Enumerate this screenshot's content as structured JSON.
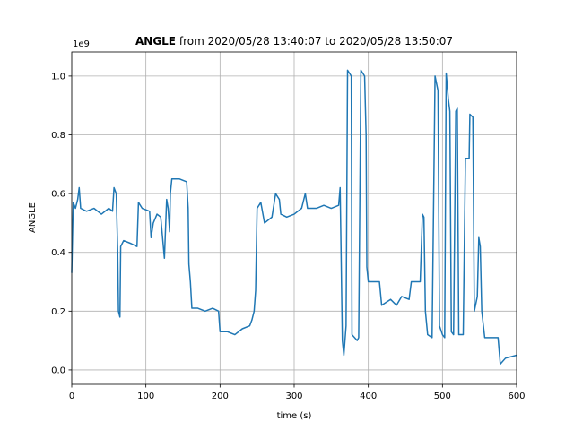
{
  "chart_data": {
    "type": "line",
    "title_bold": "ANGLE",
    "title_rest": "from 2020/05/28 13:40:07 to 2020/05/28 13:50:07",
    "offset_text": "1e9",
    "xlabel": "time (s)",
    "ylabel": "ANGLE",
    "color": "#1f77b4",
    "grid": true,
    "xlim": [
      0,
      600
    ],
    "xticks": [
      0,
      100,
      200,
      300,
      400,
      500,
      600
    ],
    "ylim": [
      -0.049,
      1.082
    ],
    "yticks": [
      {
        "value": 0,
        "label": "0.0"
      },
      0.2,
      0.4,
      0.6,
      0.8,
      {
        "value": 1,
        "label": "1.0"
      }
    ],
    "x": [
      0,
      1,
      2,
      5,
      8,
      10,
      12,
      20,
      30,
      40,
      50,
      55,
      57,
      60,
      62,
      63,
      65,
      66,
      70,
      80,
      88,
      90,
      95,
      105,
      107,
      110,
      115,
      120,
      125,
      128,
      130,
      132,
      133,
      135,
      145,
      155,
      157,
      158,
      160,
      162,
      170,
      180,
      190,
      198,
      200,
      210,
      220,
      230,
      240,
      243,
      246,
      248,
      250,
      255,
      260,
      270,
      275,
      280,
      282,
      290,
      300,
      310,
      315,
      318,
      320,
      330,
      340,
      350,
      360,
      362,
      365,
      367,
      370,
      372,
      377,
      378,
      385,
      387,
      390,
      395,
      397,
      398,
      400,
      415,
      418,
      430,
      438,
      445,
      455,
      458,
      470,
      473,
      475,
      477,
      480,
      486,
      490,
      494,
      496,
      500,
      503,
      505,
      508,
      510,
      512,
      515,
      518,
      520,
      522,
      528,
      531,
      536,
      537,
      541,
      543,
      547,
      549,
      551,
      553,
      557,
      575,
      578,
      585,
      600
    ],
    "values": [
      0.33,
      0.45,
      0.57,
      0.55,
      0.58,
      0.62,
      0.55,
      0.54,
      0.55,
      0.53,
      0.55,
      0.54,
      0.62,
      0.6,
      0.4,
      0.2,
      0.18,
      0.42,
      0.44,
      0.43,
      0.42,
      0.57,
      0.55,
      0.54,
      0.45,
      0.5,
      0.53,
      0.52,
      0.38,
      0.58,
      0.55,
      0.47,
      0.6,
      0.65,
      0.65,
      0.64,
      0.55,
      0.36,
      0.3,
      0.21,
      0.21,
      0.2,
      0.21,
      0.2,
      0.13,
      0.13,
      0.12,
      0.14,
      0.15,
      0.17,
      0.2,
      0.27,
      0.55,
      0.57,
      0.5,
      0.52,
      0.6,
      0.58,
      0.53,
      0.52,
      0.53,
      0.55,
      0.6,
      0.55,
      0.55,
      0.55,
      0.56,
      0.55,
      0.56,
      0.62,
      0.1,
      0.05,
      0.15,
      1.02,
      1.0,
      0.12,
      0.1,
      0.11,
      1.02,
      1.0,
      0.8,
      0.35,
      0.3,
      0.3,
      0.22,
      0.24,
      0.22,
      0.25,
      0.24,
      0.3,
      0.3,
      0.53,
      0.52,
      0.2,
      0.12,
      0.11,
      1.0,
      0.95,
      0.15,
      0.12,
      0.11,
      1.01,
      0.92,
      0.88,
      0.13,
      0.12,
      0.88,
      0.89,
      0.12,
      0.12,
      0.72,
      0.72,
      0.87,
      0.86,
      0.2,
      0.25,
      0.45,
      0.42,
      0.2,
      0.11,
      0.11,
      0.02,
      0.04,
      0.05
    ]
  }
}
